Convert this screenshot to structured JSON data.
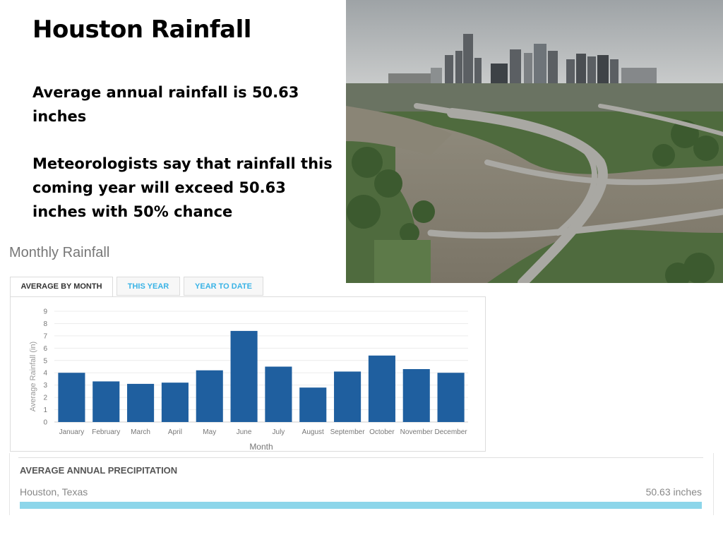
{
  "slide": {
    "title": "Houston Rainfall",
    "text1": "Average annual rainfall is 50.63 inches",
    "text2": "Meteorologists say that rainfall this coming year will exceed 50.63 inches with 50% chance"
  },
  "photo": {
    "icon": "houston-flood-aerial-photo"
  },
  "widget": {
    "title": "Monthly Rainfall",
    "tabs": [
      "AVERAGE BY MONTH",
      "THIS YEAR",
      "YEAR TO DATE"
    ],
    "active_tab": 0
  },
  "chart_data": {
    "type": "bar",
    "categories": [
      "January",
      "February",
      "March",
      "April",
      "May",
      "June",
      "July",
      "August",
      "September",
      "October",
      "November",
      "December"
    ],
    "values": [
      4.0,
      3.3,
      3.1,
      3.2,
      4.2,
      7.4,
      4.5,
      2.8,
      4.1,
      5.4,
      4.3,
      4.0
    ],
    "title": "",
    "xlabel": "Month",
    "ylabel": "Average Rainfall (in)",
    "ylim": [
      0,
      9
    ],
    "yticks": [
      0,
      1,
      2,
      3,
      4,
      5,
      6,
      7,
      8,
      9
    ],
    "grid": true,
    "bar_color": "#1f5f9f"
  },
  "precipitation": {
    "heading": "AVERAGE ANNUAL PRECIPITATION",
    "location": "Houston, Texas",
    "value": "50.63 inches",
    "bar_color": "#8dd6ea"
  }
}
